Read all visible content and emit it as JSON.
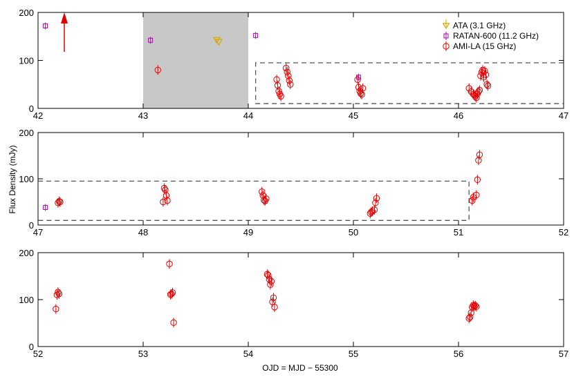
{
  "chart_data": {
    "type": "scatter",
    "xlabel": "OJD = MJD − 55300",
    "ylabel": "Flux Density (mJy)",
    "legend": {
      "placement": "top-right",
      "entries": [
        {
          "label": "ATA (3.1 GHz)",
          "series": "ata",
          "color": "#d4a800",
          "marker": "triangle-down"
        },
        {
          "label": "RATAN-600 (11.2 GHz)",
          "series": "ratan",
          "color": "#b000b0",
          "marker": "square"
        },
        {
          "label": "AMI-LA (15 GHz)",
          "series": "ami",
          "color": "#e00000",
          "marker": "circle"
        }
      ]
    },
    "panels": [
      {
        "xlim": [
          42,
          47
        ],
        "ylim": [
          0,
          200
        ],
        "xticks": [
          "42",
          "43",
          "44",
          "45",
          "46",
          "47"
        ],
        "yticks": [
          "0",
          "100",
          "200"
        ],
        "shaded_region": {
          "x": [
            43,
            44
          ],
          "color": "#c8c8c8"
        },
        "arrow": {
          "x": 42.25,
          "y_from": 118,
          "y_to": 200,
          "color": "#e00000"
        },
        "dashed_box": {
          "x": [
            44.07,
            47
          ],
          "y": [
            10,
            95
          ]
        },
        "ata": [
          [
            43.7,
            142
          ],
          [
            43.72,
            138
          ]
        ],
        "ratan": [
          [
            42.07,
            172
          ],
          [
            43.07,
            142
          ],
          [
            44.07,
            152
          ],
          [
            45.05,
            65
          ]
        ],
        "ami": [
          [
            43.14,
            80
          ],
          [
            44.27,
            60
          ],
          [
            44.28,
            48
          ],
          [
            44.29,
            36
          ],
          [
            44.3,
            30
          ],
          [
            44.31,
            25
          ],
          [
            44.36,
            84
          ],
          [
            44.37,
            76
          ],
          [
            44.38,
            68
          ],
          [
            44.39,
            58
          ],
          [
            44.4,
            50
          ],
          [
            45.04,
            60
          ],
          [
            45.05,
            44
          ],
          [
            45.06,
            36
          ],
          [
            45.07,
            31
          ],
          [
            45.08,
            29
          ],
          [
            45.09,
            42
          ],
          [
            46.1,
            42
          ],
          [
            46.12,
            35
          ],
          [
            46.14,
            30
          ],
          [
            46.15,
            28
          ],
          [
            46.16,
            25
          ],
          [
            46.17,
            22
          ],
          [
            46.18,
            30
          ],
          [
            46.19,
            35
          ],
          [
            46.2,
            38
          ],
          [
            46.21,
            68
          ],
          [
            46.22,
            75
          ],
          [
            46.23,
            80
          ],
          [
            46.24,
            65
          ],
          [
            46.25,
            78
          ],
          [
            46.26,
            70
          ],
          [
            46.27,
            50
          ],
          [
            46.28,
            47
          ]
        ]
      },
      {
        "xlim": [
          47,
          52
        ],
        "ylim": [
          0,
          200
        ],
        "xticks": [
          "47",
          "48",
          "49",
          "50",
          "51",
          "52"
        ],
        "yticks": [
          "0",
          "100",
          "200"
        ],
        "dashed_box": {
          "x": [
            47,
            51.1
          ],
          "y": [
            10,
            95
          ]
        },
        "ratan": [
          [
            47.07,
            38
          ]
        ],
        "ami": [
          [
            47.19,
            48
          ],
          [
            47.2,
            51
          ],
          [
            47.21,
            50
          ],
          [
            48.19,
            50
          ],
          [
            48.2,
            80
          ],
          [
            48.21,
            76
          ],
          [
            48.22,
            64
          ],
          [
            48.23,
            53
          ],
          [
            49.13,
            72
          ],
          [
            49.14,
            64
          ],
          [
            49.15,
            54
          ],
          [
            49.16,
            52
          ],
          [
            49.17,
            57
          ],
          [
            50.16,
            25
          ],
          [
            50.17,
            28
          ],
          [
            50.18,
            30
          ],
          [
            50.2,
            33
          ],
          [
            50.21,
            48
          ],
          [
            50.22,
            58
          ],
          [
            51.13,
            53
          ],
          [
            51.14,
            60
          ],
          [
            51.17,
            65
          ],
          [
            51.18,
            98
          ],
          [
            51.19,
            140
          ],
          [
            51.2,
            152
          ]
        ]
      },
      {
        "xlim": [
          52,
          57
        ],
        "ylim": [
          0,
          200
        ],
        "xticks": [
          "52",
          "53",
          "54",
          "55",
          "56",
          "57"
        ],
        "yticks": [
          "0",
          "100",
          "200"
        ],
        "ami": [
          [
            52.17,
            80
          ],
          [
            52.18,
            110
          ],
          [
            52.19,
            116
          ],
          [
            52.2,
            112
          ],
          [
            53.25,
            176
          ],
          [
            53.26,
            111
          ],
          [
            53.27,
            112
          ],
          [
            53.28,
            115
          ],
          [
            53.29,
            51
          ],
          [
            54.18,
            154
          ],
          [
            54.19,
            152
          ],
          [
            54.2,
            143
          ],
          [
            54.21,
            132
          ],
          [
            54.22,
            139
          ],
          [
            54.23,
            95
          ],
          [
            54.24,
            104
          ],
          [
            54.25,
            84
          ],
          [
            56.1,
            60
          ],
          [
            56.11,
            63
          ],
          [
            56.12,
            72
          ],
          [
            56.13,
            84
          ],
          [
            56.14,
            88
          ],
          [
            56.15,
            86
          ],
          [
            56.16,
            87
          ],
          [
            56.17,
            85
          ]
        ]
      }
    ]
  }
}
